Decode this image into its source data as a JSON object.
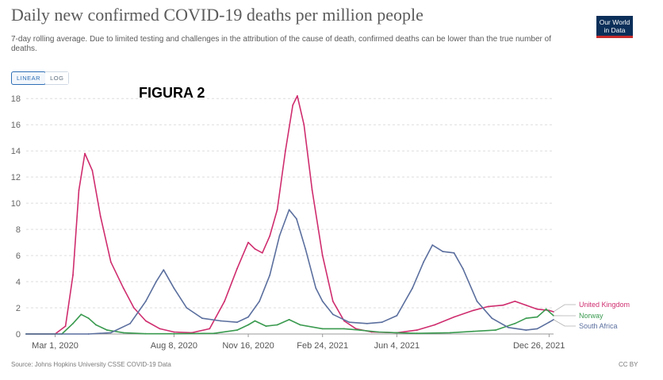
{
  "header": {
    "title": "Daily new confirmed COVID-19 deaths per million people",
    "subtitle": "7-day rolling average. Due to limited testing and challenges in the attribution of the cause of death, confirmed deaths can be lower than the true number of deaths."
  },
  "logo": {
    "line1": "Our World",
    "line2": "in Data"
  },
  "scale_toggle": {
    "linear_label": "LINEAR",
    "log_label": "LOG",
    "selected": "LINEAR"
  },
  "annotation": "FIGURA 2",
  "footer": {
    "source": "Source: Johns Hopkins University CSSE COVID-19 Data",
    "license": "CC BY"
  },
  "chart_data": {
    "type": "line",
    "title": "Daily new confirmed COVID-19 deaths per million people",
    "x_ticks": [
      "Mar 1, 2020",
      "Aug 8, 2020",
      "Nov 16, 2020",
      "Feb 24, 2021",
      "Jun 4, 2021",
      "Dec 26, 2021"
    ],
    "y_ticks": [
      0,
      2,
      4,
      6,
      8,
      10,
      12,
      14,
      16,
      18
    ],
    "xlim": [
      "2020-01-22",
      "2022-01-01"
    ],
    "ylim": [
      0,
      18.5
    ],
    "grid": "horizontal-dashed",
    "legend": "right-end-labels",
    "series": [
      {
        "name": "United Kingdom",
        "color": "#cf2d6e",
        "points": [
          [
            "2020-01-22",
            0
          ],
          [
            "2020-03-01",
            0
          ],
          [
            "2020-03-15",
            0.6
          ],
          [
            "2020-03-25",
            4.5
          ],
          [
            "2020-04-02",
            11
          ],
          [
            "2020-04-10",
            13.8
          ],
          [
            "2020-04-20",
            12.5
          ],
          [
            "2020-05-01",
            9
          ],
          [
            "2020-05-15",
            5.5
          ],
          [
            "2020-06-01",
            3.5
          ],
          [
            "2020-06-15",
            2
          ],
          [
            "2020-07-01",
            1
          ],
          [
            "2020-07-20",
            0.4
          ],
          [
            "2020-08-08",
            0.15
          ],
          [
            "2020-09-01",
            0.1
          ],
          [
            "2020-09-25",
            0.4
          ],
          [
            "2020-10-15",
            2.5
          ],
          [
            "2020-11-01",
            5
          ],
          [
            "2020-11-16",
            7
          ],
          [
            "2020-11-25",
            6.5
          ],
          [
            "2020-12-05",
            6.2
          ],
          [
            "2020-12-15",
            7.5
          ],
          [
            "2020-12-25",
            9.5
          ],
          [
            "2021-01-05",
            14
          ],
          [
            "2021-01-15",
            17.5
          ],
          [
            "2021-01-21",
            18.2
          ],
          [
            "2021-01-30",
            16
          ],
          [
            "2021-02-10",
            11
          ],
          [
            "2021-02-24",
            6
          ],
          [
            "2021-03-10",
            2.5
          ],
          [
            "2021-03-25",
            1
          ],
          [
            "2021-04-10",
            0.4
          ],
          [
            "2021-05-01",
            0.15
          ],
          [
            "2021-06-04",
            0.1
          ],
          [
            "2021-07-01",
            0.3
          ],
          [
            "2021-07-25",
            0.7
          ],
          [
            "2021-08-20",
            1.3
          ],
          [
            "2021-09-15",
            1.8
          ],
          [
            "2021-10-05",
            2.1
          ],
          [
            "2021-10-25",
            2.2
          ],
          [
            "2021-11-10",
            2.5
          ],
          [
            "2021-11-25",
            2.2
          ],
          [
            "2021-12-10",
            1.9
          ],
          [
            "2021-12-26",
            1.8
          ],
          [
            "2022-01-01",
            1.7
          ]
        ]
      },
      {
        "name": "Norway",
        "color": "#3a9a4f",
        "points": [
          [
            "2020-01-22",
            0
          ],
          [
            "2020-03-10",
            0
          ],
          [
            "2020-03-25",
            0.8
          ],
          [
            "2020-04-05",
            1.5
          ],
          [
            "2020-04-15",
            1.2
          ],
          [
            "2020-04-25",
            0.7
          ],
          [
            "2020-05-10",
            0.3
          ],
          [
            "2020-06-01",
            0.1
          ],
          [
            "2020-07-01",
            0.02
          ],
          [
            "2020-08-08",
            0.02
          ],
          [
            "2020-10-01",
            0.05
          ],
          [
            "2020-11-01",
            0.3
          ],
          [
            "2020-11-16",
            0.7
          ],
          [
            "2020-11-25",
            1
          ],
          [
            "2020-12-10",
            0.6
          ],
          [
            "2020-12-25",
            0.7
          ],
          [
            "2021-01-10",
            1.1
          ],
          [
            "2021-01-25",
            0.7
          ],
          [
            "2021-02-24",
            0.4
          ],
          [
            "2021-03-25",
            0.4
          ],
          [
            "2021-04-15",
            0.3
          ],
          [
            "2021-05-10",
            0.15
          ],
          [
            "2021-06-04",
            0.1
          ],
          [
            "2021-07-01",
            0.05
          ],
          [
            "2021-08-15",
            0.1
          ],
          [
            "2021-09-15",
            0.2
          ],
          [
            "2021-10-15",
            0.3
          ],
          [
            "2021-11-10",
            0.8
          ],
          [
            "2021-11-25",
            1.2
          ],
          [
            "2021-12-10",
            1.3
          ],
          [
            "2021-12-22",
            1.9
          ],
          [
            "2022-01-01",
            1.4
          ]
        ]
      },
      {
        "name": "South Africa",
        "color": "#5b6f9e",
        "points": [
          [
            "2020-01-22",
            0
          ],
          [
            "2020-04-15",
            0
          ],
          [
            "2020-05-15",
            0.1
          ],
          [
            "2020-06-10",
            0.8
          ],
          [
            "2020-07-01",
            2.5
          ],
          [
            "2020-07-15",
            4
          ],
          [
            "2020-07-25",
            4.9
          ],
          [
            "2020-08-08",
            3.5
          ],
          [
            "2020-08-25",
            2
          ],
          [
            "2020-09-15",
            1.2
          ],
          [
            "2020-10-10",
            1
          ],
          [
            "2020-11-01",
            0.9
          ],
          [
            "2020-11-16",
            1.3
          ],
          [
            "2020-12-01",
            2.5
          ],
          [
            "2020-12-15",
            4.5
          ],
          [
            "2020-12-28",
            7.5
          ],
          [
            "2021-01-10",
            9.5
          ],
          [
            "2021-01-20",
            8.8
          ],
          [
            "2021-02-01",
            6.5
          ],
          [
            "2021-02-15",
            3.5
          ],
          [
            "2021-02-24",
            2.5
          ],
          [
            "2021-03-10",
            1.5
          ],
          [
            "2021-04-01",
            0.9
          ],
          [
            "2021-04-25",
            0.8
          ],
          [
            "2021-05-15",
            0.9
          ],
          [
            "2021-06-04",
            1.4
          ],
          [
            "2021-06-25",
            3.5
          ],
          [
            "2021-07-10",
            5.5
          ],
          [
            "2021-07-22",
            6.8
          ],
          [
            "2021-08-05",
            6.3
          ],
          [
            "2021-08-20",
            6.2
          ],
          [
            "2021-09-01",
            5
          ],
          [
            "2021-09-20",
            2.5
          ],
          [
            "2021-10-10",
            1.2
          ],
          [
            "2021-11-01",
            0.5
          ],
          [
            "2021-11-25",
            0.3
          ],
          [
            "2021-12-10",
            0.4
          ],
          [
            "2021-12-26",
            0.9
          ],
          [
            "2022-01-01",
            1.1
          ]
        ]
      }
    ]
  }
}
